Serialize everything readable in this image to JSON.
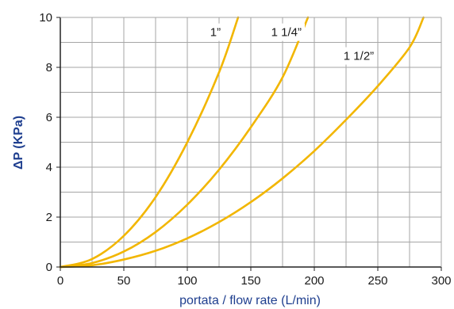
{
  "chart_data": {
    "type": "line",
    "xlabel": "portata / flow rate (L/min)",
    "ylabel": "ΔP (KPa)",
    "xlim": [
      0,
      300
    ],
    "ylim": [
      0,
      10
    ],
    "xticks": [
      "0",
      "50",
      "100",
      "150",
      "200",
      "250",
      "300"
    ],
    "yticks": [
      "0",
      "2",
      "4",
      "6",
      "8",
      "10"
    ],
    "grid": true,
    "series": [
      {
        "name": "1”",
        "x": [
          0,
          25,
          50,
          75,
          100,
          125,
          140
        ],
        "y": [
          0,
          0.32,
          1.25,
          2.8,
          5.0,
          7.8,
          10.0
        ],
        "label_x": 118,
        "label_y": 9.25
      },
      {
        "name": "1 1/4”",
        "x": [
          0,
          25,
          50,
          75,
          100,
          125,
          150,
          175,
          195
        ],
        "y": [
          0,
          0.16,
          0.62,
          1.4,
          2.5,
          3.9,
          5.6,
          7.6,
          10.0
        ],
        "label_x": 166,
        "label_y": 9.25
      },
      {
        "name": "1 1/2”",
        "x": [
          0,
          25,
          50,
          75,
          100,
          125,
          150,
          175,
          200,
          225,
          250,
          275,
          286
        ],
        "y": [
          0,
          0.07,
          0.3,
          0.65,
          1.15,
          1.8,
          2.6,
          3.55,
          4.65,
          5.9,
          7.25,
          8.8,
          10.0
        ],
        "label_x": 223,
        "label_y": 8.3
      }
    ],
    "line_color": "#f2b600",
    "axis_title_color": "#1f3f8f",
    "grid_color": "#a6a6a6"
  }
}
